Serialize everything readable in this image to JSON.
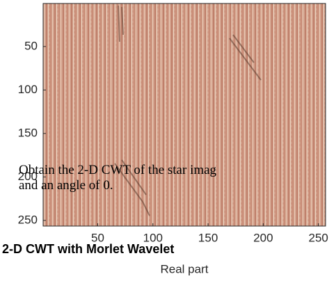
{
  "chart_data": {
    "type": "image",
    "xlabel": "Real part",
    "xlim": [
      0.5,
      256.5
    ],
    "ylim": [
      0.5,
      256.5
    ],
    "xticks": [
      50,
      100,
      150,
      200,
      250
    ],
    "yticks": [
      50,
      100,
      150,
      200,
      250
    ]
  },
  "document": {
    "paragraph": [
      "Obtain the 2-D CWT of the star imag",
      "and an angle of 0."
    ],
    "heading": "2-D CWT with Morlet Wavelet"
  }
}
